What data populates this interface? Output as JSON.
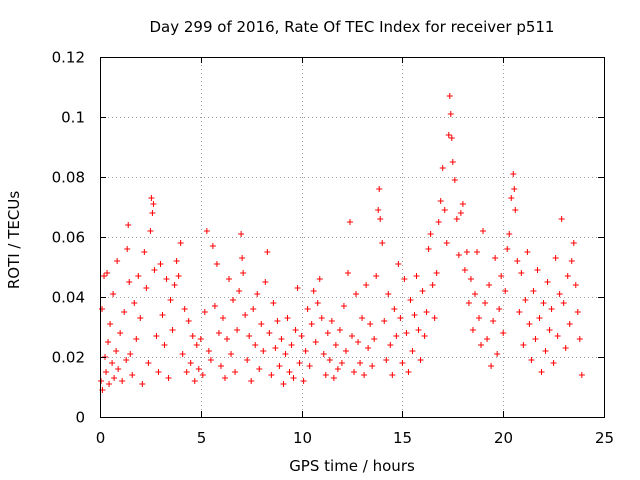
{
  "chart_data": {
    "type": "scatter",
    "title": "Day 299 of 2016, Rate Of TEC Index for receiver p511",
    "xlabel": "GPS time / hours",
    "ylabel": "ROTI / TECUs",
    "xlim": [
      0,
      25
    ],
    "ylim": [
      0,
      0.12
    ],
    "x_ticks": [
      0,
      5,
      10,
      15,
      20,
      25
    ],
    "x_tick_labels": [
      "0",
      "5",
      "10",
      "15",
      "20",
      "25"
    ],
    "y_ticks": [
      0,
      0.02,
      0.04,
      0.06,
      0.08,
      0.1,
      0.12
    ],
    "y_tick_labels": [
      "0",
      "0.02",
      "0.04",
      "0.06",
      "0.08",
      "0.1",
      "0.12"
    ],
    "grid": true,
    "marker": "+",
    "color": "#ff0000",
    "series": [
      {
        "name": "ROTI",
        "points": [
          [
            0.05,
            0.012
          ],
          [
            0.1,
            0.036
          ],
          [
            0.12,
            0.009
          ],
          [
            0.2,
            0.047
          ],
          [
            0.25,
            0.02
          ],
          [
            0.3,
            0.015
          ],
          [
            0.35,
            0.048
          ],
          [
            0.4,
            0.025
          ],
          [
            0.45,
            0.011
          ],
          [
            0.5,
            0.031
          ],
          [
            0.6,
            0.018
          ],
          [
            0.65,
            0.041
          ],
          [
            0.7,
            0.013
          ],
          [
            0.8,
            0.022
          ],
          [
            0.85,
            0.052
          ],
          [
            0.9,
            0.016
          ],
          [
            1.0,
            0.028
          ],
          [
            1.1,
            0.012
          ],
          [
            1.2,
            0.035
          ],
          [
            1.3,
            0.019
          ],
          [
            1.35,
            0.056
          ],
          [
            1.4,
            0.064
          ],
          [
            1.45,
            0.045
          ],
          [
            1.5,
            0.021
          ],
          [
            1.6,
            0.014
          ],
          [
            1.7,
            0.038
          ],
          [
            1.8,
            0.026
          ],
          [
            1.9,
            0.047
          ],
          [
            2.0,
            0.033
          ],
          [
            2.1,
            0.011
          ],
          [
            2.2,
            0.055
          ],
          [
            2.3,
            0.043
          ],
          [
            2.4,
            0.018
          ],
          [
            2.5,
            0.062
          ],
          [
            2.55,
            0.073
          ],
          [
            2.6,
            0.068
          ],
          [
            2.65,
            0.071
          ],
          [
            2.7,
            0.049
          ],
          [
            2.8,
            0.027
          ],
          [
            2.9,
            0.015
          ],
          [
            3.0,
            0.051
          ],
          [
            3.1,
            0.034
          ],
          [
            3.2,
            0.024
          ],
          [
            3.3,
            0.046
          ],
          [
            3.4,
            0.013
          ],
          [
            3.5,
            0.039
          ],
          [
            3.6,
            0.029
          ],
          [
            3.7,
            0.044
          ],
          [
            3.8,
            0.052
          ],
          [
            3.9,
            0.047
          ],
          [
            4.0,
            0.058
          ],
          [
            4.1,
            0.021
          ],
          [
            4.2,
            0.036
          ],
          [
            4.3,
            0.015
          ],
          [
            4.4,
            0.032
          ],
          [
            4.5,
            0.018
          ],
          [
            4.6,
            0.027
          ],
          [
            4.7,
            0.012
          ],
          [
            4.8,
            0.024
          ],
          [
            4.9,
            0.016
          ],
          [
            5.0,
            0.026
          ],
          [
            5.1,
            0.014
          ],
          [
            5.2,
            0.035
          ],
          [
            5.3,
            0.062
          ],
          [
            5.4,
            0.022
          ],
          [
            5.5,
            0.019
          ],
          [
            5.6,
            0.057
          ],
          [
            5.7,
            0.037
          ],
          [
            5.8,
            0.051
          ],
          [
            5.9,
            0.028
          ],
          [
            6.0,
            0.017
          ],
          [
            6.1,
            0.033
          ],
          [
            6.2,
            0.013
          ],
          [
            6.3,
            0.026
          ],
          [
            6.4,
            0.046
          ],
          [
            6.5,
            0.021
          ],
          [
            6.6,
            0.039
          ],
          [
            6.7,
            0.015
          ],
          [
            6.8,
            0.029
          ],
          [
            6.9,
            0.042
          ],
          [
            7.0,
            0.061
          ],
          [
            7.05,
            0.053
          ],
          [
            7.1,
            0.048
          ],
          [
            7.2,
            0.034
          ],
          [
            7.3,
            0.019
          ],
          [
            7.4,
            0.027
          ],
          [
            7.5,
            0.012
          ],
          [
            7.6,
            0.036
          ],
          [
            7.7,
            0.024
          ],
          [
            7.8,
            0.041
          ],
          [
            7.9,
            0.016
          ],
          [
            8.0,
            0.031
          ],
          [
            8.1,
            0.022
          ],
          [
            8.2,
            0.045
          ],
          [
            8.3,
            0.055
          ],
          [
            8.4,
            0.028
          ],
          [
            8.5,
            0.014
          ],
          [
            8.6,
            0.038
          ],
          [
            8.7,
            0.023
          ],
          [
            8.8,
            0.032
          ],
          [
            8.9,
            0.017
          ],
          [
            9.0,
            0.026
          ],
          [
            9.1,
            0.011
          ],
          [
            9.2,
            0.021
          ],
          [
            9.3,
            0.033
          ],
          [
            9.4,
            0.015
          ],
          [
            9.5,
            0.024
          ],
          [
            9.6,
            0.013
          ],
          [
            9.7,
            0.029
          ],
          [
            9.8,
            0.043
          ],
          [
            9.9,
            0.018
          ],
          [
            10.0,
            0.027
          ],
          [
            10.1,
            0.012
          ],
          [
            10.2,
            0.022
          ],
          [
            10.3,
            0.036
          ],
          [
            10.4,
            0.017
          ],
          [
            10.5,
            0.031
          ],
          [
            10.6,
            0.042
          ],
          [
            10.7,
            0.025
          ],
          [
            10.8,
            0.038
          ],
          [
            10.9,
            0.046
          ],
          [
            11.0,
            0.033
          ],
          [
            11.1,
            0.021
          ],
          [
            11.2,
            0.014
          ],
          [
            11.3,
            0.028
          ],
          [
            11.4,
            0.019
          ],
          [
            11.5,
            0.032
          ],
          [
            11.6,
            0.013
          ],
          [
            11.7,
            0.024
          ],
          [
            11.8,
            0.016
          ],
          [
            11.9,
            0.029
          ],
          [
            12.0,
            0.018
          ],
          [
            12.1,
            0.037
          ],
          [
            12.2,
            0.022
          ],
          [
            12.3,
            0.048
          ],
          [
            12.4,
            0.065
          ],
          [
            12.5,
            0.027
          ],
          [
            12.6,
            0.015
          ],
          [
            12.7,
            0.041
          ],
          [
            12.8,
            0.025
          ],
          [
            12.9,
            0.018
          ],
          [
            13.0,
            0.033
          ],
          [
            13.1,
            0.014
          ],
          [
            13.2,
            0.044
          ],
          [
            13.3,
            0.023
          ],
          [
            13.4,
            0.031
          ],
          [
            13.5,
            0.017
          ],
          [
            13.6,
            0.026
          ],
          [
            13.7,
            0.047
          ],
          [
            13.8,
            0.069
          ],
          [
            13.85,
            0.076
          ],
          [
            13.9,
            0.066
          ],
          [
            14.0,
            0.058
          ],
          [
            14.1,
            0.032
          ],
          [
            14.2,
            0.019
          ],
          [
            14.3,
            0.041
          ],
          [
            14.4,
            0.024
          ],
          [
            14.5,
            0.014
          ],
          [
            14.6,
            0.036
          ],
          [
            14.7,
            0.027
          ],
          [
            14.8,
            0.051
          ],
          [
            14.9,
            0.033
          ],
          [
            15.0,
            0.018
          ],
          [
            15.1,
            0.046
          ],
          [
            15.2,
            0.028
          ],
          [
            15.3,
            0.015
          ],
          [
            15.4,
            0.039
          ],
          [
            15.5,
            0.022
          ],
          [
            15.6,
            0.034
          ],
          [
            15.7,
            0.047
          ],
          [
            15.8,
            0.029
          ],
          [
            15.9,
            0.019
          ],
          [
            16.0,
            0.042
          ],
          [
            16.1,
            0.027
          ],
          [
            16.2,
            0.035
          ],
          [
            16.3,
            0.056
          ],
          [
            16.4,
            0.061
          ],
          [
            16.5,
            0.044
          ],
          [
            16.6,
            0.033
          ],
          [
            16.7,
            0.048
          ],
          [
            16.8,
            0.065
          ],
          [
            16.9,
            0.072
          ],
          [
            17.0,
            0.083
          ],
          [
            17.1,
            0.069
          ],
          [
            17.2,
            0.058
          ],
          [
            17.3,
            0.094
          ],
          [
            17.35,
            0.107
          ],
          [
            17.4,
            0.101
          ],
          [
            17.45,
            0.093
          ],
          [
            17.5,
            0.085
          ],
          [
            17.6,
            0.079
          ],
          [
            17.7,
            0.066
          ],
          [
            17.8,
            0.054
          ],
          [
            17.9,
            0.068
          ],
          [
            18.0,
            0.071
          ],
          [
            18.1,
            0.049
          ],
          [
            18.2,
            0.055
          ],
          [
            18.3,
            0.038
          ],
          [
            18.4,
            0.046
          ],
          [
            18.5,
            0.029
          ],
          [
            18.6,
            0.041
          ],
          [
            18.7,
            0.055
          ],
          [
            18.8,
            0.033
          ],
          [
            18.9,
            0.024
          ],
          [
            19.0,
            0.062
          ],
          [
            19.1,
            0.038
          ],
          [
            19.2,
            0.026
          ],
          [
            19.3,
            0.044
          ],
          [
            19.4,
            0.017
          ],
          [
            19.5,
            0.032
          ],
          [
            19.6,
            0.053
          ],
          [
            19.7,
            0.021
          ],
          [
            19.8,
            0.036
          ],
          [
            19.9,
            0.047
          ],
          [
            20.0,
            0.028
          ],
          [
            20.1,
            0.042
          ],
          [
            20.2,
            0.056
          ],
          [
            20.3,
            0.061
          ],
          [
            20.4,
            0.073
          ],
          [
            20.5,
            0.081
          ],
          [
            20.55,
            0.076
          ],
          [
            20.6,
            0.069
          ],
          [
            20.7,
            0.052
          ],
          [
            20.8,
            0.035
          ],
          [
            20.9,
            0.048
          ],
          [
            21.0,
            0.024
          ],
          [
            21.1,
            0.039
          ],
          [
            21.2,
            0.055
          ],
          [
            21.3,
            0.031
          ],
          [
            21.4,
            0.019
          ],
          [
            21.5,
            0.042
          ],
          [
            21.6,
            0.026
          ],
          [
            21.7,
            0.049
          ],
          [
            21.8,
            0.033
          ],
          [
            21.9,
            0.015
          ],
          [
            22.0,
            0.038
          ],
          [
            22.1,
            0.022
          ],
          [
            22.2,
            0.045
          ],
          [
            22.3,
            0.029
          ],
          [
            22.4,
            0.036
          ],
          [
            22.5,
            0.018
          ],
          [
            22.6,
            0.053
          ],
          [
            22.7,
            0.027
          ],
          [
            22.8,
            0.041
          ],
          [
            22.9,
            0.066
          ],
          [
            23.0,
            0.038
          ],
          [
            23.1,
            0.023
          ],
          [
            23.2,
            0.047
          ],
          [
            23.3,
            0.031
          ],
          [
            23.4,
            0.052
          ],
          [
            23.5,
            0.058
          ],
          [
            23.6,
            0.044
          ],
          [
            23.7,
            0.035
          ],
          [
            23.8,
            0.026
          ],
          [
            23.9,
            0.014
          ]
        ]
      }
    ]
  }
}
